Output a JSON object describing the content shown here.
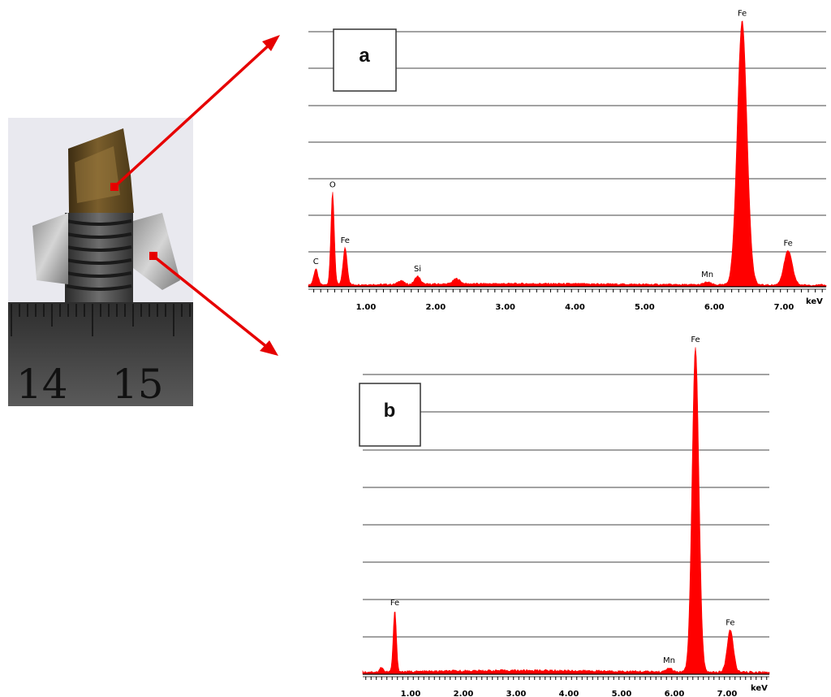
{
  "photo": {
    "ruler_labels": [
      "14",
      "15"
    ],
    "colors": {
      "arrow": "#e60000",
      "bolt": "#6b5226",
      "ruler": "#3a3a3a"
    }
  },
  "chart_data": [
    {
      "type": "area",
      "panel_label": "a",
      "xlabel": "keV",
      "xlim": [
        0.15,
        7.75
      ],
      "ylim": [
        0,
        100
      ],
      "tick_labels": [
        "1.00",
        "2.00",
        "3.00",
        "4.00",
        "5.00",
        "6.00",
        "7.00"
      ],
      "tick_values": [
        1,
        2,
        3,
        4,
        5,
        6,
        7
      ],
      "gridlines": 7,
      "color": "#ff0000",
      "baseline_level": 1.2,
      "peaks": [
        {
          "label": "C",
          "energy": 0.28,
          "height": 6,
          "width": 0.03
        },
        {
          "label": "O",
          "energy": 0.52,
          "height": 35,
          "width": 0.025
        },
        {
          "label": "Fe",
          "energy": 0.7,
          "height": 14,
          "width": 0.03
        },
        {
          "label": "",
          "energy": 1.5,
          "height": 1.5,
          "width": 0.04
        },
        {
          "label": "Si",
          "energy": 1.74,
          "height": 3,
          "width": 0.04
        },
        {
          "label": "",
          "energy": 2.3,
          "height": 2.0,
          "width": 0.05
        },
        {
          "label": "Mn",
          "energy": 5.9,
          "height": 1.0,
          "width": 0.05
        },
        {
          "label": "Fe",
          "energy": 6.4,
          "height": 100,
          "width": 0.07
        },
        {
          "label": "Fe",
          "energy": 7.06,
          "height": 13,
          "width": 0.06
        }
      ]
    },
    {
      "type": "area",
      "panel_label": "b",
      "xlabel": "keV",
      "xlim": [
        0.15,
        7.75
      ],
      "ylim": [
        0,
        100
      ],
      "tick_labels": [
        "1.00",
        "2.00",
        "3.00",
        "4.00",
        "5.00",
        "6.00",
        "7.00"
      ],
      "tick_values": [
        1,
        2,
        3,
        4,
        5,
        6,
        7
      ],
      "gridlines": 8,
      "color": "#ff0000",
      "baseline_level": 1.2,
      "peaks": [
        {
          "label": "",
          "energy": 0.45,
          "height": 1.5,
          "width": 0.03
        },
        {
          "label": "Fe",
          "energy": 0.7,
          "height": 19,
          "width": 0.03
        },
        {
          "label": "Mn",
          "energy": 5.9,
          "height": 1.2,
          "width": 0.05
        },
        {
          "label": "Fe",
          "energy": 6.4,
          "height": 100,
          "width": 0.065
        },
        {
          "label": "Fe",
          "energy": 7.06,
          "height": 13,
          "width": 0.06
        }
      ]
    }
  ]
}
